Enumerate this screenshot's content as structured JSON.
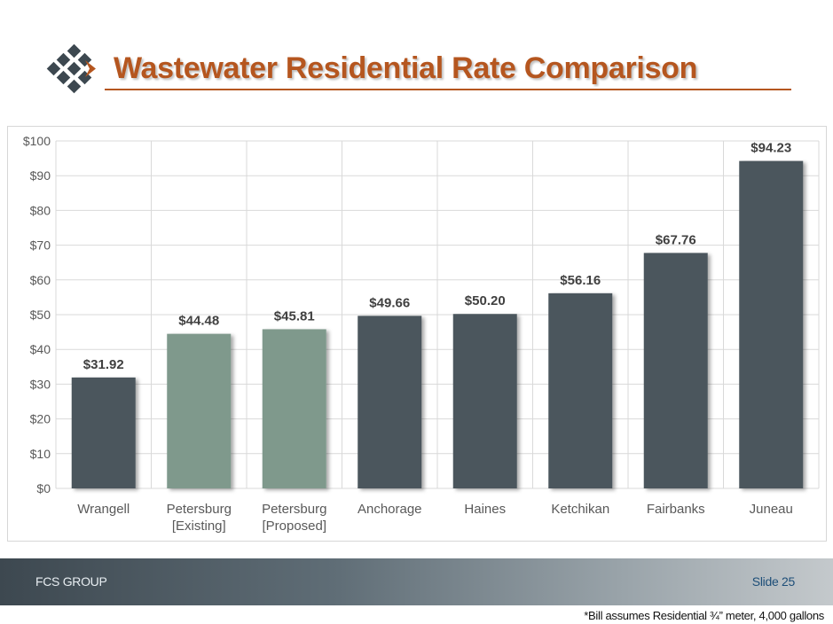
{
  "slide": {
    "title": "Wastewater Residential Rate Comparison",
    "footer_company": "FCS GROUP",
    "footer_slide": "Slide 25",
    "footnote": "*Bill assumes Residential ¾” meter, 4,000 gallons"
  },
  "colors": {
    "title": "#b5561f",
    "bar_dark": "#4b565d",
    "bar_highlight": "#7f998c",
    "grid": "#d9d9d9",
    "logo_dark": "#3d4850",
    "logo_accent": "#b5561f"
  },
  "chart_data": {
    "type": "bar",
    "categories": [
      [
        "Wrangell"
      ],
      [
        "Petersburg",
        "[Existing]"
      ],
      [
        "Petersburg",
        "[Proposed]"
      ],
      [
        "Anchorage"
      ],
      [
        "Haines"
      ],
      [
        "Ketchikan"
      ],
      [
        "Fairbanks"
      ],
      [
        "Juneau"
      ]
    ],
    "values": [
      31.92,
      44.48,
      45.81,
      49.66,
      50.2,
      56.16,
      67.76,
      94.23
    ],
    "data_labels": [
      "$31.92",
      "$44.48",
      "$45.81",
      "$49.66",
      "$50.20",
      "$56.16",
      "$67.76",
      "$94.23"
    ],
    "highlighted": [
      false,
      true,
      true,
      false,
      false,
      false,
      false,
      false
    ],
    "ylim": [
      0,
      100
    ],
    "yticks": [
      0,
      10,
      20,
      30,
      40,
      50,
      60,
      70,
      80,
      90,
      100
    ],
    "ytick_labels": [
      "$0",
      "$10",
      "$20",
      "$30",
      "$40",
      "$50",
      "$60",
      "$70",
      "$80",
      "$90",
      "$100"
    ],
    "grid": true,
    "legend": "none",
    "title": "",
    "xlabel": "",
    "ylabel": ""
  }
}
